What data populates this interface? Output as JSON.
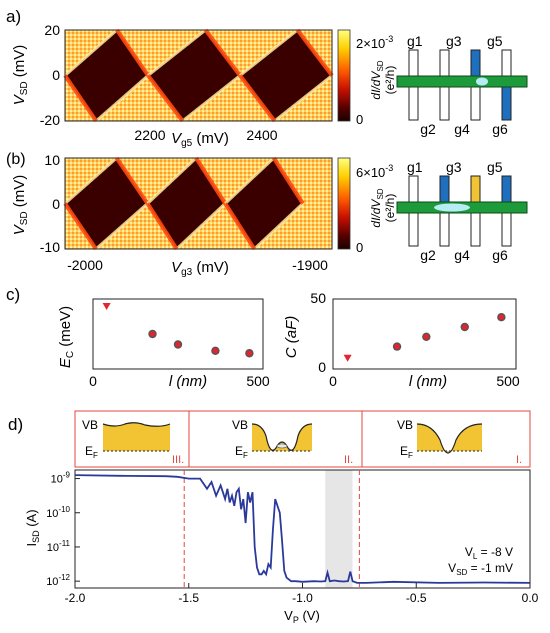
{
  "panels": {
    "a": {
      "label": "a)",
      "ylabel_main": "V",
      "ylabel_sub": "SD",
      "ylabel_unit": " (mV)",
      "y_ticks": [
        "20",
        "0",
        "-20"
      ],
      "xlabel_main": "V",
      "xlabel_sub": "g5",
      "xlabel_unit": " (mV)",
      "x_ticks": [
        "2200",
        "2400"
      ],
      "cbar_top": "2×10",
      "cbar_top_exp": "-3",
      "cbar_bottom": "0",
      "cbar_label": "dI/dV",
      "cbar_label_sub": "SD",
      "cbar_unit": "(e²/h)",
      "gates_top": [
        "g1",
        "g3",
        "g5"
      ],
      "gates_bottom": [
        "g2",
        "g4",
        "g6"
      ]
    },
    "b": {
      "label": "(b)",
      "ylabel_main": "V",
      "ylabel_sub": "SD",
      "ylabel_unit": " (mV)",
      "y_ticks": [
        "10",
        "0",
        "-10"
      ],
      "xlabel_main": "V",
      "xlabel_sub": "g3",
      "xlabel_unit": " (mV)",
      "x_ticks": [
        "-2000",
        "-1900"
      ],
      "cbar_top": "6×10",
      "cbar_top_exp": "-3",
      "cbar_bottom": "0",
      "cbar_label": "dI/dV",
      "cbar_label_sub": "SD",
      "cbar_unit": "(e²/h)",
      "gates_top": [
        "g1",
        "g3",
        "g5"
      ],
      "gates_bottom": [
        "g2",
        "g4",
        "g6"
      ]
    },
    "c": {
      "label": "c)",
      "left": {
        "ylabel_main": "E",
        "ylabel_sub": "C",
        "ylabel_unit": " (meV)",
        "xlabel": "l (nm)",
        "y_ticks": [
          "20",
          "10",
          "0"
        ],
        "x_ticks": [
          "0",
          "500"
        ]
      },
      "right": {
        "ylabel": "C (aF)",
        "xlabel": "l (nm)",
        "y_ticks": [
          "50",
          "0"
        ],
        "x_ticks": [
          "0",
          "500"
        ]
      }
    },
    "d": {
      "label": "d)",
      "region_labels": [
        "III.",
        "II.",
        "I."
      ],
      "band_vb": "VB",
      "band_ef": "E",
      "band_ef_sub": "F",
      "ylabel": "I",
      "ylabel_sub": "SD",
      "ylabel_unit": " (A)",
      "xlabel": "V",
      "xlabel_sub": "P",
      "xlabel_unit": " (V)",
      "y_ticks": [
        "10",
        "10",
        "10",
        "10"
      ],
      "y_tick_exps": [
        "-9",
        "-10",
        "-11",
        "-12"
      ],
      "x_ticks": [
        "-2.0",
        "-1.5",
        "-1.0",
        "-0.5",
        "0.0"
      ],
      "annotation_vl": "V",
      "annotation_vl_sub": "L",
      "annotation_vl_val": " = -8 V",
      "annotation_vsd": "V",
      "annotation_vsd_sub": "SD",
      "annotation_vsd_val": " = -1 mV",
      "colors": {
        "trace": "#2b3a9a",
        "region": "#e2473f",
        "band_fill": "#f2c433"
      }
    }
  },
  "chart_data": [
    {
      "type": "heatmap",
      "xlabel": "Vg5 (mV)",
      "ylabel": "VSD (mV)",
      "xlim": [
        2050,
        2500
      ],
      "ylim": [
        -20,
        20
      ],
      "x_ticks": [
        2200,
        2400
      ],
      "colorbar": {
        "label": "dI/dVSD (e²/h)",
        "range": [
          0,
          0.002
        ]
      },
      "diamond_centers_x": [
        2050,
        2190,
        2345,
        2500
      ]
    },
    {
      "type": "heatmap",
      "xlabel": "Vg3 (mV)",
      "ylabel": "VSD (mV)",
      "xlim": [
        -2000,
        -1890
      ],
      "ylim": [
        -10,
        10
      ],
      "x_ticks": [
        -2000,
        -1900
      ],
      "colorbar": {
        "label": "dI/dVSD (e²/h)",
        "range": [
          0,
          0.006
        ]
      },
      "diamond_centers_x": [
        -2000,
        -1966,
        -1934,
        -1902
      ]
    },
    {
      "type": "scatter",
      "xlabel": "l (nm)",
      "ylabel": "EC (meV)",
      "xlim": [
        0,
        500
      ],
      "ylim": [
        0,
        20
      ],
      "series": [
        {
          "marker": "triangle",
          "x": [
            40
          ],
          "y": [
            18
          ]
        },
        {
          "marker": "circle",
          "x": [
            175,
            250,
            360,
            460
          ],
          "y": [
            10,
            7,
            5.2,
            4.5
          ]
        }
      ]
    },
    {
      "type": "scatter",
      "xlabel": "l (nm)",
      "ylabel": "C (aF)",
      "xlim": [
        0,
        500
      ],
      "ylim": [
        0,
        50
      ],
      "series": [
        {
          "marker": "triangle",
          "x": [
            40
          ],
          "y": [
            8
          ]
        },
        {
          "marker": "circle",
          "x": [
            175,
            255,
            360,
            460
          ],
          "y": [
            16,
            23,
            30,
            37
          ]
        }
      ]
    },
    {
      "type": "line",
      "xlabel": "VP (V)",
      "ylabel": "ISD (A)",
      "xlim": [
        -2.0,
        0.0
      ],
      "ylim_log10": [
        -12.2,
        -8.75
      ],
      "y_scale": "log",
      "region_boundaries": [
        -1.52,
        -0.75
      ],
      "shaded_band": [
        -0.9,
        -0.78
      ],
      "series": [
        {
          "x": [
            -2.0,
            -1.8,
            -1.6,
            -1.55,
            -1.5,
            -1.45,
            -1.42,
            -1.4,
            -1.38,
            -1.36,
            -1.35,
            -1.34,
            -1.33,
            -1.32,
            -1.31,
            -1.3,
            -1.29,
            -1.28,
            -1.27,
            -1.26,
            -1.25,
            -1.24,
            -1.23,
            -1.22,
            -1.21,
            -1.2,
            -1.19,
            -1.18,
            -1.17,
            -1.16,
            -1.15,
            -1.14,
            -1.13,
            -1.12,
            -1.11,
            -1.1,
            -1.09,
            -1.08,
            -1.07,
            -1.06,
            -1.05,
            -1.03,
            -1.0,
            -0.95,
            -0.92,
            -0.9,
            -0.89,
            -0.88,
            -0.86,
            -0.84,
            -0.82,
            -0.8,
            -0.79,
            -0.78,
            -0.76,
            -0.72,
            -0.6,
            -0.4,
            -0.2,
            0.0
          ],
          "log10_y": [
            -8.9,
            -8.92,
            -8.93,
            -8.95,
            -9.0,
            -9.0,
            -9.3,
            -9.1,
            -9.5,
            -9.2,
            -9.4,
            -9.6,
            -9.3,
            -9.7,
            -9.5,
            -9.8,
            -9.4,
            -9.3,
            -9.9,
            -9.6,
            -10.3,
            -9.4,
            -9.7,
            -9.4,
            -11.0,
            -11.6,
            -11.8,
            -11.8,
            -11.7,
            -11.8,
            -11.5,
            -11.6,
            -10.5,
            -9.6,
            -9.8,
            -10.0,
            -10.8,
            -11.7,
            -11.9,
            -11.95,
            -12.0,
            -12.0,
            -12.02,
            -12.0,
            -12.01,
            -12.0,
            -11.75,
            -12.0,
            -11.98,
            -12.0,
            -12.01,
            -12.0,
            -11.72,
            -12.0,
            -12.05,
            -12.05,
            -12.02,
            -12.05,
            -12.04,
            -12.05
          ]
        }
      ]
    }
  ]
}
